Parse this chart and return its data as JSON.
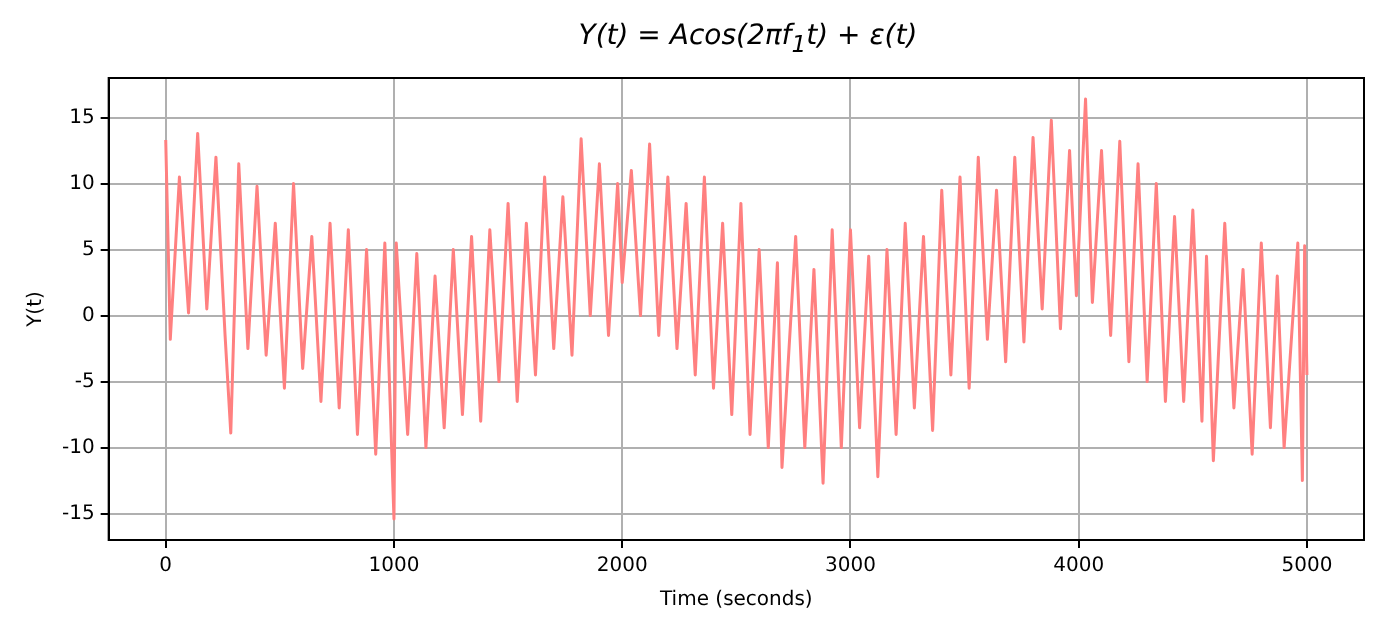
{
  "chart_data": {
    "type": "line",
    "title": "Y(t) = Acos(2πf$_{1}$t) + ε(t)",
    "xlabel": "Time (seconds)",
    "ylabel": "Y(t)",
    "x": [
      0,
      20,
      60,
      100,
      140,
      180,
      220,
      260,
      285,
      320,
      360,
      400,
      440,
      480,
      520,
      560,
      600,
      640,
      680,
      720,
      760,
      800,
      840,
      880,
      920,
      960,
      1000,
      1010,
      1060,
      1100,
      1140,
      1180,
      1220,
      1260,
      1300,
      1340,
      1380,
      1420,
      1460,
      1500,
      1540,
      1580,
      1620,
      1660,
      1700,
      1740,
      1780,
      1820,
      1860,
      1900,
      1940,
      1980,
      2000,
      2040,
      2080,
      2120,
      2160,
      2200,
      2240,
      2280,
      2320,
      2360,
      2400,
      2440,
      2480,
      2520,
      2560,
      2600,
      2640,
      2680,
      2700,
      2760,
      2800,
      2840,
      2880,
      2920,
      2960,
      3000,
      3040,
      3080,
      3120,
      3160,
      3200,
      3240,
      3280,
      3320,
      3360,
      3400,
      3440,
      3480,
      3520,
      3560,
      3600,
      3640,
      3680,
      3720,
      3760,
      3800,
      3840,
      3880,
      3920,
      3960,
      3990,
      4030,
      4060,
      4100,
      4140,
      4180,
      4220,
      4260,
      4300,
      4340,
      4380,
      4420,
      4460,
      4500,
      4540,
      4560,
      4590,
      4640,
      4680,
      4720,
      4760,
      4800,
      4840,
      4870,
      4900,
      4960,
      4980,
      4990,
      5000
    ],
    "series": [
      {
        "color": "#ff8080",
        "values": [
          13.3,
          -1.8,
          10.5,
          0.2,
          13.8,
          0.5,
          12,
          -1.5,
          -8.9,
          11.5,
          -2.5,
          9.8,
          -3,
          7,
          -5.5,
          10,
          -4,
          6,
          -6.5,
          7,
          -7,
          6.5,
          -9,
          5,
          -10.5,
          5.5,
          -15.4,
          5.5,
          -9,
          4.7,
          -10,
          3,
          -8.5,
          5,
          -7.5,
          6,
          -8,
          6.5,
          -5,
          8.5,
          -6.5,
          7,
          -4.5,
          10.5,
          -2.5,
          9,
          -3,
          13.4,
          0,
          11.5,
          -1.5,
          10,
          2.5,
          11,
          0,
          13,
          -1.5,
          10.5,
          -2.5,
          8.5,
          -4.5,
          10.5,
          -5.5,
          7,
          -7.5,
          8.5,
          -9,
          5,
          -10,
          4,
          -11.5,
          6,
          -10,
          3.5,
          -12.7,
          6.5,
          -10,
          6.5,
          -8.5,
          4.5,
          -12.2,
          5,
          -9,
          7,
          -7,
          6,
          -8.7,
          9.5,
          -4.5,
          10.5,
          -5.5,
          12,
          -1.8,
          9.5,
          -3.5,
          12,
          -2,
          13.5,
          0.5,
          14.8,
          -1,
          12.5,
          1.5,
          16.4,
          1,
          12.5,
          -1.5,
          13.2,
          -3.5,
          11.5,
          -5,
          10,
          -6.5,
          7.5,
          -6.5,
          8,
          -8,
          4.5,
          -11,
          7,
          -7,
          3.5,
          -10.5,
          5.5,
          -8.5,
          3,
          -10,
          5.5,
          -12.5,
          5.3,
          -4.5
        ]
      }
    ],
    "xlim": [
      -250,
      5250
    ],
    "xticks": [
      0,
      1000,
      2000,
      3000,
      4000,
      5000
    ],
    "ylim": [
      -17,
      18
    ],
    "yticks": [
      -15,
      -10,
      -5,
      0,
      5,
      10,
      15
    ],
    "grid": true,
    "legend": false,
    "marker": "none",
    "line_style": "solid"
  }
}
